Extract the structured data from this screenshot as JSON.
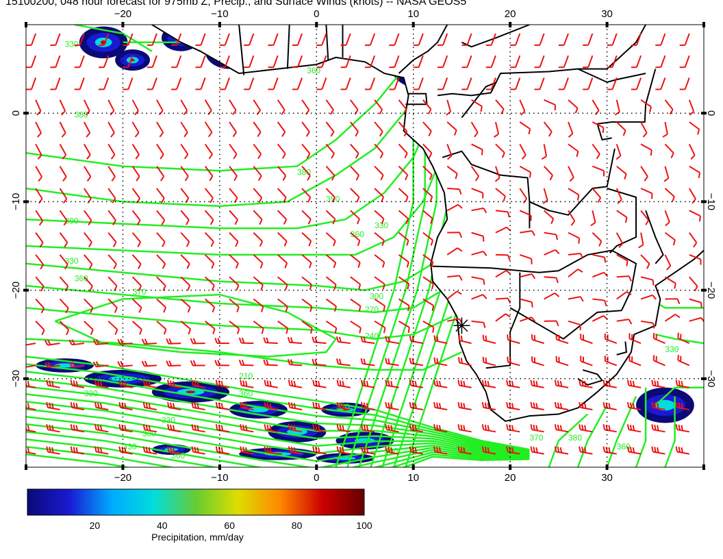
{
  "title": "15100200, 048 hour forecast for 975mb Z, Precip., and Surface Winds (knots) -- NASA GEOS5",
  "map": {
    "projection": "cylindrical",
    "lon_range": [
      -30,
      40
    ],
    "lat_range": [
      -40,
      10
    ],
    "lon_ticks": [
      "−20",
      "−10",
      "0",
      "10",
      "20",
      "30"
    ],
    "lat_ticks": [
      "0",
      "−10",
      "−20",
      "−30"
    ],
    "contour_color": "#22ee22",
    "wind_barb_color": "#ee1111",
    "coastline_color": "#000000",
    "contour_labels": [
      "330",
      "360",
      "370",
      "380",
      "390",
      "330",
      "360",
      "370",
      "380",
      "390",
      "360",
      "330",
      "300",
      "270",
      "240",
      "210",
      "330",
      "360",
      "330",
      "300",
      "330",
      "360",
      "330",
      "360",
      "370",
      "380",
      "360",
      "330"
    ],
    "marker": "storm-center",
    "marker_lon": 15,
    "marker_lat": -24
  },
  "colorbar": {
    "ticks": [
      "20",
      "40",
      "60",
      "80",
      "100"
    ],
    "label": "Precipitation, mm/day",
    "stops": [
      "#0a0a78",
      "#1a1ad2",
      "#00aaff",
      "#00dddd",
      "#66cc33",
      "#dddd00",
      "#ff8800",
      "#cc0000",
      "#660000"
    ]
  }
}
